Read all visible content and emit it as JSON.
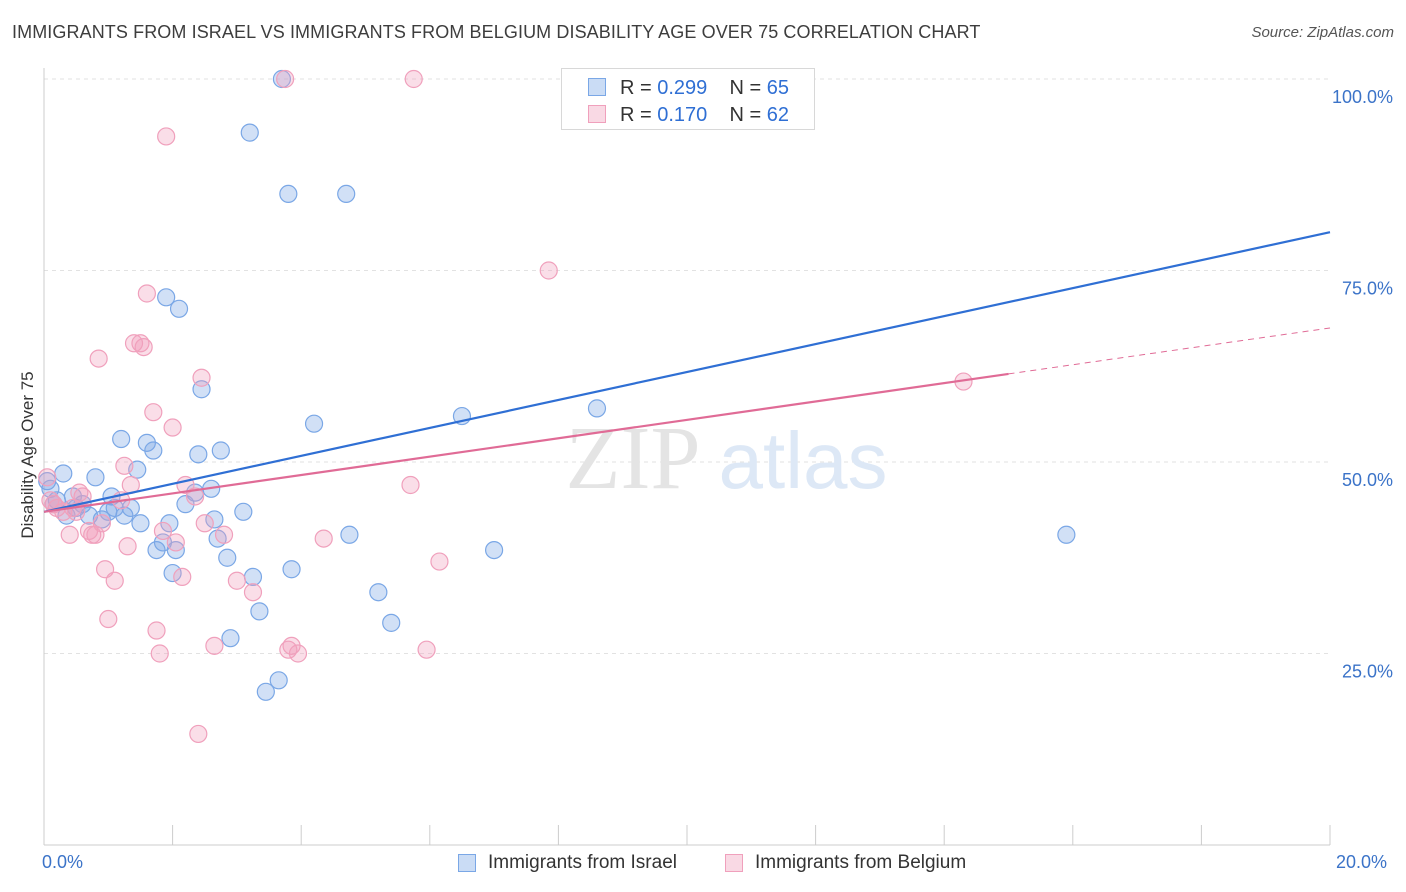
{
  "title": "IMMIGRANTS FROM ISRAEL VS IMMIGRANTS FROM BELGIUM DISABILITY AGE OVER 75 CORRELATION CHART",
  "source": "Source: ZipAtlas.com",
  "watermark": {
    "zip": "ZIP",
    "atlas": "atlas"
  },
  "legend": {
    "rows": [
      {
        "r_label": "R =",
        "r_value": "0.299",
        "n_label": "N =",
        "n_value": "65",
        "color": "#7aa7e6"
      },
      {
        "r_label": "R =",
        "r_value": "0.170",
        "n_label": "N =",
        "n_value": "62",
        "color": "#f0a0bc"
      }
    ]
  },
  "chart_data": {
    "type": "scatter",
    "xlabel": "",
    "ylabel": "Disability Age Over 75",
    "xlim": [
      0,
      20
    ],
    "ylim": [
      0,
      100
    ],
    "x_tick_labels": [
      "0.0%",
      "20.0%"
    ],
    "y_ticks": [
      25,
      50,
      75,
      100
    ],
    "y_tick_labels": [
      "25.0%",
      "50.0%",
      "75.0%",
      "100.0%"
    ],
    "grid": true,
    "legend_position": "bottom",
    "series": [
      {
        "name": "Immigrants from Israel",
        "color": "#7aa7e6",
        "line_color": "#2f6fd4",
        "trend": {
          "x": [
            0,
            20
          ],
          "y": [
            43.5,
            80.0
          ]
        },
        "points": [
          [
            0.05,
            47.5
          ],
          [
            0.1,
            46.5
          ],
          [
            0.15,
            44.5
          ],
          [
            0.2,
            45.0
          ],
          [
            0.3,
            48.5
          ],
          [
            0.35,
            43.0
          ],
          [
            0.45,
            45.5
          ],
          [
            0.5,
            44.0
          ],
          [
            0.6,
            44.5
          ],
          [
            0.7,
            43.0
          ],
          [
            0.8,
            48.0
          ],
          [
            0.9,
            42.5
          ],
          [
            1.0,
            43.5
          ],
          [
            1.05,
            45.5
          ],
          [
            1.1,
            44.0
          ],
          [
            1.2,
            53.0
          ],
          [
            1.25,
            43.0
          ],
          [
            1.35,
            44.0
          ],
          [
            1.45,
            49.0
          ],
          [
            1.5,
            42.0
          ],
          [
            1.6,
            52.5
          ],
          [
            1.7,
            51.5
          ],
          [
            1.75,
            38.5
          ],
          [
            1.85,
            39.5
          ],
          [
            1.95,
            42.0
          ],
          [
            2.0,
            35.5
          ],
          [
            2.05,
            38.5
          ],
          [
            1.9,
            71.5
          ],
          [
            2.1,
            70.0
          ],
          [
            2.2,
            44.5
          ],
          [
            2.35,
            46.0
          ],
          [
            2.4,
            51.0
          ],
          [
            2.45,
            59.5
          ],
          [
            2.6,
            46.5
          ],
          [
            2.65,
            42.5
          ],
          [
            2.7,
            40.0
          ],
          [
            2.75,
            51.5
          ],
          [
            2.85,
            37.5
          ],
          [
            2.9,
            27.0
          ],
          [
            3.1,
            43.5
          ],
          [
            3.2,
            93.0
          ],
          [
            3.25,
            35.0
          ],
          [
            3.35,
            30.5
          ],
          [
            3.45,
            20.0
          ],
          [
            3.65,
            21.5
          ],
          [
            3.7,
            100.0
          ],
          [
            3.8,
            85.0
          ],
          [
            3.85,
            36.0
          ],
          [
            4.2,
            55.0
          ],
          [
            4.7,
            85.0
          ],
          [
            4.75,
            40.5
          ],
          [
            5.2,
            33.0
          ],
          [
            5.4,
            29.0
          ],
          [
            6.5,
            56.0
          ],
          [
            7.0,
            38.5
          ],
          [
            8.6,
            57.0
          ],
          [
            10.4,
            100.0
          ],
          [
            10.9,
            100.0
          ],
          [
            15.9,
            40.5
          ]
        ]
      },
      {
        "name": "Immigrants from Belgium",
        "color": "#f0a0bc",
        "line_color": "#e06b96",
        "trend": {
          "x": [
            0,
            15
          ],
          "y": [
            43.5,
            61.5
          ]
        },
        "trend_dashed": {
          "x": [
            15,
            20
          ],
          "y": [
            61.5,
            67.5
          ]
        },
        "points": [
          [
            0.05,
            48.0
          ],
          [
            0.1,
            45.0
          ],
          [
            0.15,
            44.5
          ],
          [
            0.2,
            44.0
          ],
          [
            0.3,
            43.5
          ],
          [
            0.4,
            40.5
          ],
          [
            0.45,
            44.0
          ],
          [
            0.5,
            43.5
          ],
          [
            0.55,
            46.0
          ],
          [
            0.6,
            45.5
          ],
          [
            0.7,
            41.0
          ],
          [
            0.75,
            40.5
          ],
          [
            0.8,
            40.5
          ],
          [
            0.9,
            42.0
          ],
          [
            0.95,
            36.0
          ],
          [
            1.0,
            29.5
          ],
          [
            0.85,
            63.5
          ],
          [
            1.1,
            34.5
          ],
          [
            1.2,
            45.0
          ],
          [
            1.25,
            49.5
          ],
          [
            1.3,
            39.0
          ],
          [
            1.35,
            47.0
          ],
          [
            1.4,
            65.5
          ],
          [
            1.5,
            65.5
          ],
          [
            1.55,
            65.0
          ],
          [
            1.6,
            72.0
          ],
          [
            1.7,
            56.5
          ],
          [
            1.75,
            28.0
          ],
          [
            1.8,
            25.0
          ],
          [
            1.85,
            41.0
          ],
          [
            1.9,
            92.5
          ],
          [
            2.0,
            54.5
          ],
          [
            2.05,
            39.5
          ],
          [
            2.15,
            35.0
          ],
          [
            2.2,
            47.0
          ],
          [
            2.35,
            45.5
          ],
          [
            2.4,
            14.5
          ],
          [
            2.45,
            61.0
          ],
          [
            2.5,
            42.0
          ],
          [
            2.65,
            26.0
          ],
          [
            2.8,
            40.5
          ],
          [
            3.0,
            34.5
          ],
          [
            3.25,
            33.0
          ],
          [
            3.8,
            25.5
          ],
          [
            3.85,
            26.0
          ],
          [
            3.95,
            25.0
          ],
          [
            3.75,
            100.0
          ],
          [
            4.35,
            40.0
          ],
          [
            5.7,
            47.0
          ],
          [
            5.75,
            100.0
          ],
          [
            5.95,
            25.5
          ],
          [
            6.15,
            37.0
          ],
          [
            7.85,
            75.0
          ],
          [
            14.3,
            60.5
          ]
        ]
      }
    ]
  }
}
